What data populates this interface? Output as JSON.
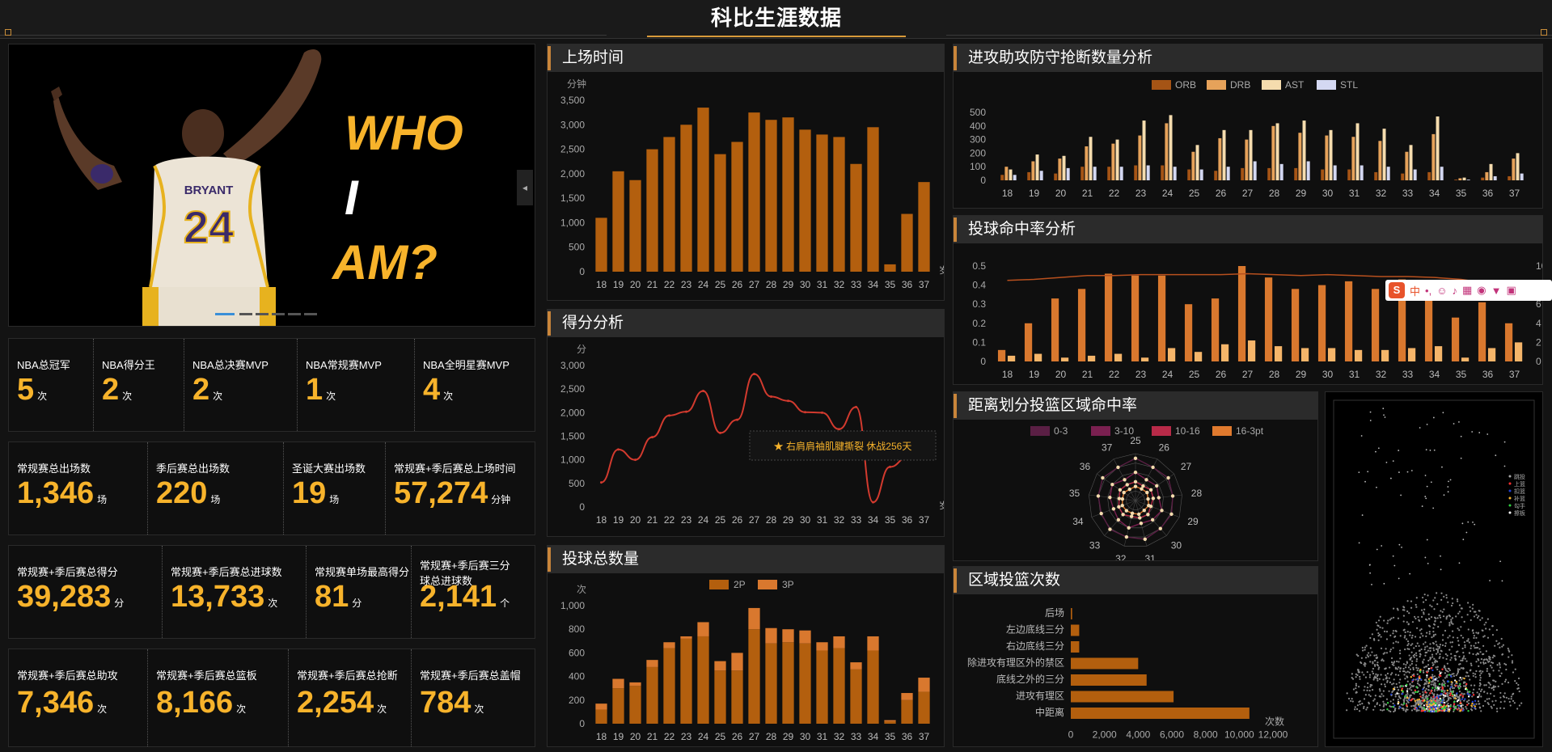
{
  "header": {
    "title": "科比生涯数据"
  },
  "hero": {
    "line1": "WHO",
    "line2": "I",
    "line3": "AM?",
    "jersey_name": "BRYANT",
    "jersey_number": "24"
  },
  "stats_row1": [
    {
      "label": "NBA总冠军",
      "value": "5",
      "unit": "次"
    },
    {
      "label": "NBA得分王",
      "value": "2",
      "unit": "次"
    },
    {
      "label": "NBA总决赛MVP",
      "value": "2",
      "unit": "次"
    },
    {
      "label": "NBA常规赛MVP",
      "value": "1",
      "unit": "次"
    },
    {
      "label": "NBA全明星赛MVP",
      "value": "4",
      "unit": "次"
    }
  ],
  "stats_row2": [
    {
      "label": "常规赛总出场数",
      "value": "1,346",
      "unit": "场"
    },
    {
      "label": "季后赛总出场数",
      "value": "220",
      "unit": "场"
    },
    {
      "label": "圣诞大赛出场数",
      "value": "19",
      "unit": "场"
    },
    {
      "label": "常规赛+季后赛总上场时间",
      "value": "57,274",
      "unit": "分钟"
    }
  ],
  "stats_row3": [
    {
      "label": "常规赛+季后赛总得分",
      "value": "39,283",
      "unit": "分"
    },
    {
      "label": "常规赛+季后赛总进球数",
      "value": "13,733",
      "unit": "次"
    },
    {
      "label": "常规赛单场最高得分",
      "value": "81",
      "unit": "分"
    },
    {
      "label": "常规赛+季后赛三分球总进球数",
      "value": "2,141",
      "unit": "个"
    }
  ],
  "stats_row4": [
    {
      "label": "常规赛+季后赛总助攻",
      "value": "7,346",
      "unit": "次"
    },
    {
      "label": "常规赛+季后赛总篮板",
      "value": "8,166",
      "unit": "次"
    },
    {
      "label": "常规赛+季后赛总抢断",
      "value": "2,254",
      "unit": "次"
    },
    {
      "label": "常规赛+季后赛总盖帽",
      "value": "784",
      "unit": "次"
    }
  ],
  "panels": {
    "minutes": "上场时间",
    "scoring": "得分分析",
    "shots": "投球总数量",
    "counts": "进攻助攻防守抢断数量分析",
    "pct": "投球命中率分析",
    "radar": "距离划分投篮区域命中率",
    "zones": "区域投篮次数"
  },
  "colors": {
    "accent": "#f7b32b",
    "bar": "#b35f0e",
    "bar3p": "#d9782e",
    "line": "#d23a2e"
  },
  "chart_data": [
    {
      "id": "minutes",
      "type": "bar",
      "title": "上场时间",
      "ylabel": "分钟",
      "categories": [
        "18",
        "19",
        "20",
        "21",
        "22",
        "23",
        "24",
        "25",
        "26",
        "27",
        "28",
        "29",
        "30",
        "31",
        "32",
        "33",
        "34",
        "35",
        "36",
        "37"
      ],
      "values": [
        1100,
        2050,
        1870,
        2500,
        2750,
        3000,
        3350,
        2400,
        2650,
        3250,
        3100,
        3150,
        2900,
        2800,
        2750,
        2200,
        2950,
        150,
        1180,
        1830
      ],
      "ylim": [
        0,
        3500
      ],
      "yticks": [
        "0",
        "500",
        "1,000",
        "1,500",
        "2,000",
        "2,500",
        "3,000",
        "3,500"
      ],
      "xunit": "岁"
    },
    {
      "id": "scoring",
      "type": "line",
      "title": "得分分析",
      "ylabel": "分",
      "categories": [
        "18",
        "19",
        "20",
        "21",
        "22",
        "23",
        "24",
        "25",
        "26",
        "27",
        "28",
        "29",
        "30",
        "31",
        "32",
        "33",
        "34",
        "35",
        "36",
        "37"
      ],
      "values": [
        520,
        1220,
        1000,
        1480,
        1940,
        2020,
        2460,
        1570,
        1850,
        2820,
        2340,
        2250,
        2010,
        2000,
        1650,
        2120,
        100,
        850,
        1040,
        1230
      ],
      "ylim": [
        0,
        3000
      ],
      "yticks": [
        "0",
        "500",
        "1,000",
        "1,500",
        "2,000",
        "2,500",
        "3,000"
      ],
      "annotation": "★ 右肩肩袖肌腱撕裂 休战256天",
      "xunit": "岁"
    },
    {
      "id": "shots",
      "type": "bar",
      "title": "投球总数量",
      "ylabel": "次",
      "categories": [
        "18",
        "19",
        "20",
        "21",
        "22",
        "23",
        "24",
        "25",
        "26",
        "27",
        "28",
        "29",
        "30",
        "31",
        "32",
        "33",
        "34",
        "35",
        "36",
        "37"
      ],
      "series": [
        {
          "name": "2P",
          "values": [
            120,
            300,
            320,
            480,
            640,
            720,
            740,
            450,
            450,
            800,
            680,
            690,
            680,
            620,
            640,
            460,
            620,
            20,
            200,
            270
          ]
        },
        {
          "name": "3P",
          "values": [
            50,
            80,
            30,
            60,
            50,
            20,
            120,
            80,
            150,
            180,
            130,
            110,
            110,
            70,
            100,
            60,
            120,
            10,
            60,
            120
          ]
        }
      ],
      "ylim": [
        0,
        1000
      ],
      "yticks": [
        "0",
        "200",
        "400",
        "600",
        "800",
        "1,000"
      ]
    },
    {
      "id": "counts",
      "type": "bar",
      "title": "进攻助攻防守抢断数量分析",
      "categories": [
        "18",
        "19",
        "20",
        "21",
        "22",
        "23",
        "24",
        "25",
        "26",
        "27",
        "28",
        "29",
        "30",
        "31",
        "32",
        "33",
        "34",
        "35",
        "36",
        "37"
      ],
      "series": [
        {
          "name": "ORB",
          "values": [
            40,
            60,
            50,
            100,
            100,
            110,
            110,
            80,
            70,
            90,
            90,
            90,
            80,
            80,
            60,
            50,
            60,
            5,
            20,
            30
          ]
        },
        {
          "name": "DRB",
          "values": [
            100,
            140,
            160,
            250,
            270,
            330,
            420,
            210,
            310,
            300,
            400,
            350,
            330,
            320,
            290,
            210,
            340,
            15,
            60,
            160
          ]
        },
        {
          "name": "AST",
          "values": [
            80,
            190,
            180,
            320,
            300,
            440,
            480,
            260,
            370,
            370,
            420,
            440,
            370,
            420,
            380,
            260,
            470,
            20,
            120,
            200
          ]
        },
        {
          "name": "STL",
          "values": [
            40,
            70,
            90,
            100,
            100,
            110,
            100,
            80,
            100,
            140,
            120,
            140,
            110,
            110,
            100,
            80,
            100,
            5,
            30,
            50
          ]
        }
      ],
      "ylim": [
        0,
        500
      ],
      "yticks": [
        "0",
        "100",
        "200",
        "300",
        "400",
        "500"
      ]
    },
    {
      "id": "pct",
      "type": "bar",
      "title": "投球命中率分析",
      "categories": [
        "18",
        "19",
        "20",
        "21",
        "22",
        "23",
        "24",
        "25",
        "26",
        "27",
        "28",
        "29",
        "30",
        "31",
        "32",
        "33",
        "34",
        "35",
        "36",
        "37"
      ],
      "series": [
        {
          "name": "2P%",
          "values": [
            0.06,
            0.2,
            0.33,
            0.38,
            0.46,
            0.45,
            0.45,
            0.3,
            0.33,
            0.5,
            0.44,
            0.38,
            0.4,
            0.42,
            0.38,
            0.43,
            0.37,
            0.23,
            0.31,
            0.2
          ]
        },
        {
          "name": "3P%",
          "values": [
            0.03,
            0.04,
            0.02,
            0.03,
            0.04,
            0.02,
            0.07,
            0.05,
            0.09,
            0.11,
            0.08,
            0.07,
            0.07,
            0.06,
            0.06,
            0.07,
            0.08,
            0.02,
            0.07,
            0.1
          ]
        },
        {
          "name": "line",
          "values": [
            8.5,
            8.6,
            8.8,
            9.0,
            9.0,
            9.1,
            9.1,
            9.1,
            9.1,
            9.2,
            9.1,
            9.0,
            9.1,
            9.0,
            8.9,
            8.9,
            8.8,
            8.6,
            8.2,
            7.8
          ]
        }
      ],
      "ylim": [
        0,
        0.5
      ],
      "yticks": [
        "0",
        "0.1",
        "0.2",
        "0.3",
        "0.4",
        "0.5"
      ],
      "y2ticks": [
        "0岁",
        "2",
        "4",
        "6",
        "8",
        "10"
      ]
    },
    {
      "id": "radar",
      "type": "radar",
      "title": "距离划分投篮区域命中率",
      "categories": [
        "25",
        "26",
        "27",
        "28",
        "29",
        "30",
        "31",
        "32",
        "33",
        "34",
        "35",
        "36",
        "37"
      ],
      "legend": [
        "0-3",
        "3-10",
        "10-16",
        "16-3pt"
      ],
      "series": [
        {
          "name": "0-3",
          "values": [
            0.9,
            0.8,
            0.85,
            0.8,
            0.82,
            0.8,
            0.85,
            0.8,
            0.82,
            0.78,
            0.8,
            0.85,
            0.8
          ]
        },
        {
          "name": "3-10",
          "values": [
            0.6,
            0.5,
            0.55,
            0.5,
            0.6,
            0.55,
            0.5,
            0.6,
            0.55,
            0.5,
            0.55,
            0.6,
            0.5
          ]
        },
        {
          "name": "10-16",
          "values": [
            0.4,
            0.35,
            0.4,
            0.38,
            0.35,
            0.4,
            0.38,
            0.35,
            0.4,
            0.38,
            0.35,
            0.4,
            0.38
          ]
        },
        {
          "name": "16-3pt",
          "values": [
            0.3,
            0.28,
            0.3,
            0.27,
            0.3,
            0.28,
            0.3,
            0.28,
            0.29,
            0.3,
            0.28,
            0.3,
            0.27
          ]
        }
      ]
    },
    {
      "id": "zones",
      "type": "bar",
      "title": "区域投篮次数",
      "xlabel": "次数",
      "categories": [
        "后场",
        "左边底线三分",
        "右边底线三分",
        "除进攻有理区外的禁区",
        "底线之外的三分",
        "进攻有理区",
        "中距离"
      ],
      "values": [
        80,
        500,
        500,
        4000,
        4500,
        6100,
        10600
      ],
      "xlim": [
        0,
        12000
      ],
      "xticks": [
        "0",
        "2,000",
        "4,000",
        "6,000",
        "8,000",
        "10,000",
        "12,000"
      ]
    }
  ],
  "shot_legend": [
    "跳投",
    "上篮",
    "扣篮",
    "补篮",
    "勾手",
    "擦板"
  ]
}
